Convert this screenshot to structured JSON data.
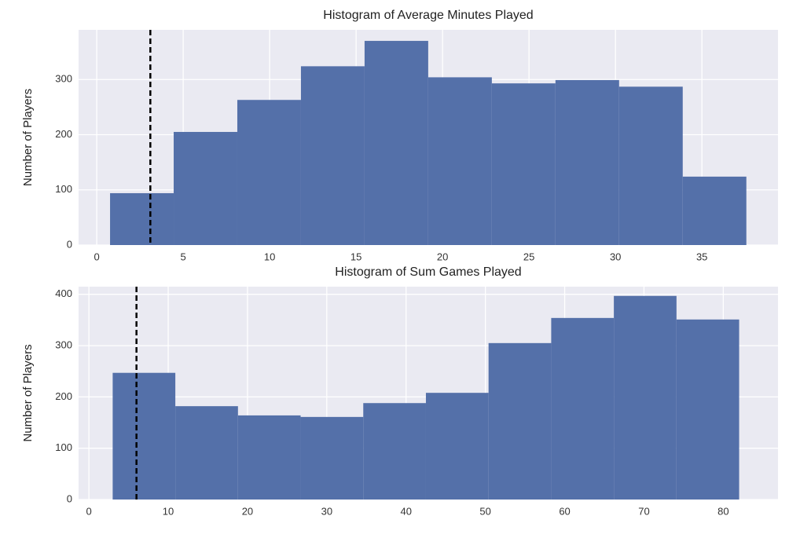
{
  "chart_data": [
    {
      "type": "histogram",
      "title": "Histogram of Average Minutes Played",
      "y_label": "Number of Players",
      "bins": [
        0.77,
        4.45,
        8.13,
        11.81,
        15.49,
        19.17,
        22.85,
        26.53,
        30.21,
        33.89,
        37.57
      ],
      "values": [
        94,
        205,
        263,
        324,
        370,
        304,
        293,
        299,
        287,
        124
      ],
      "color": "#5470a9",
      "vline": 3.1,
      "xlim": [
        -1.05,
        39.4
      ],
      "xticks": [
        0,
        5,
        10,
        15,
        20,
        25,
        30,
        35
      ],
      "ylim": [
        0,
        390
      ],
      "yticks": [
        0,
        100,
        200,
        300
      ],
      "grid": true
    },
    {
      "type": "histogram",
      "title": "Histogram of Sum Games Played",
      "y_label": "Number of Players",
      "bins": [
        3,
        10.9,
        18.8,
        26.7,
        34.6,
        42.5,
        50.4,
        58.3,
        66.2,
        74.1,
        82
      ],
      "values": [
        247,
        182,
        164,
        161,
        188,
        208,
        305,
        354,
        397,
        351
      ],
      "color": "#5470a9",
      "vline": 6,
      "xlim": [
        -1.3,
        86.9
      ],
      "xticks": [
        0,
        10,
        20,
        30,
        40,
        50,
        60,
        70,
        80
      ],
      "ylim": [
        0,
        415
      ],
      "yticks": [
        0,
        100,
        200,
        300,
        400
      ],
      "grid": true
    }
  ]
}
